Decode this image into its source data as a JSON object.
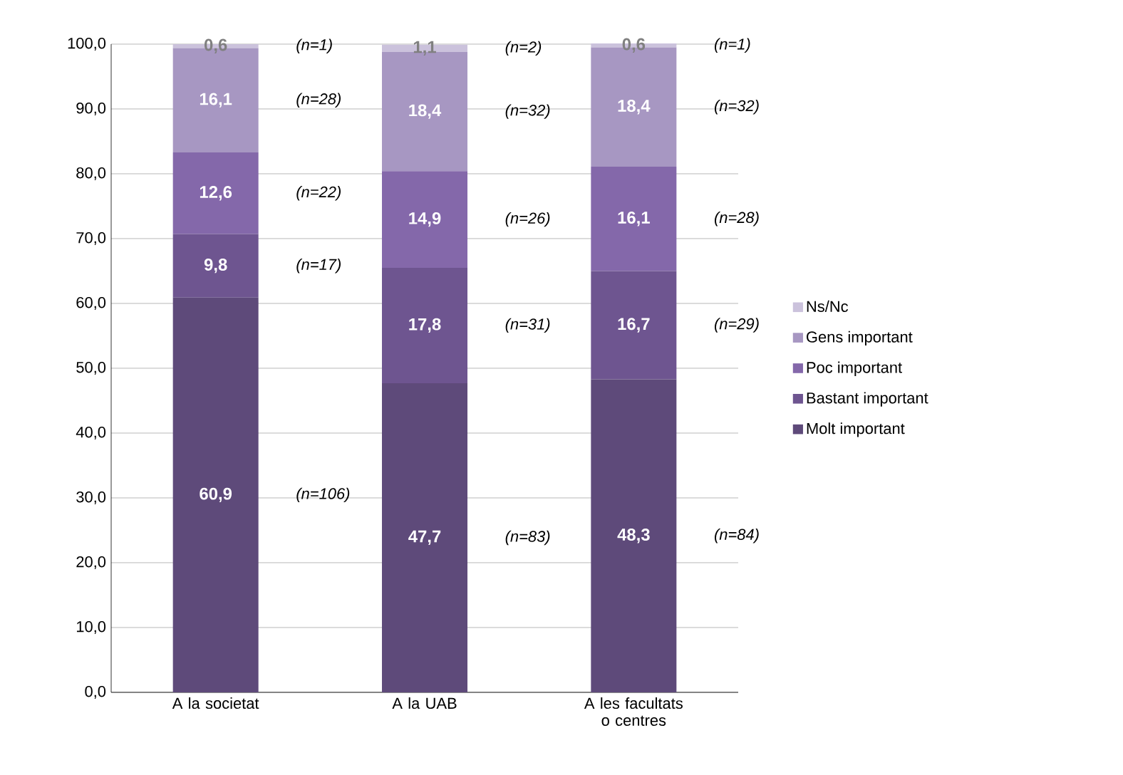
{
  "chart_data": {
    "type": "bar",
    "stacked": true,
    "categories": [
      "A la societat",
      "A la UAB",
      "A les facultats o centres"
    ],
    "series": [
      {
        "name": "Molt important",
        "color": "#5e4a7a",
        "values": [
          60.9,
          47.7,
          48.3
        ],
        "value_labels": [
          "60,9",
          "47,7",
          "48,3"
        ]
      },
      {
        "name": "Bastant important",
        "color": "#6e5590",
        "values": [
          9.8,
          17.8,
          16.7
        ],
        "value_labels": [
          "9,8",
          "17,8",
          "16,7"
        ]
      },
      {
        "name": "Poc important",
        "color": "#8468aa",
        "values": [
          12.6,
          14.9,
          16.1
        ],
        "value_labels": [
          "12,6",
          "14,9",
          "16,1"
        ]
      },
      {
        "name": "Gens important",
        "color": "#a797c2",
        "values": [
          16.1,
          18.4,
          18.4
        ],
        "value_labels": [
          "16,1",
          "18,4",
          "18,4"
        ]
      },
      {
        "name": "Ns/Nc",
        "color": "#cbc2dc",
        "values": [
          0.6,
          1.1,
          0.6
        ],
        "value_labels": [
          "0,6",
          "1,1",
          "0,6"
        ]
      }
    ],
    "ylim": [
      0,
      100
    ],
    "yticks": [
      {
        "value": 0,
        "label": "0,0"
      },
      {
        "value": 10,
        "label": "10,0"
      },
      {
        "value": 20,
        "label": "20,0"
      },
      {
        "value": 30,
        "label": "30,0"
      },
      {
        "value": 40,
        "label": "40,0"
      },
      {
        "value": 50,
        "label": "50,0"
      },
      {
        "value": 60,
        "label": "60,0"
      },
      {
        "value": 70,
        "label": "70,0"
      },
      {
        "value": 80,
        "label": "80,0"
      },
      {
        "value": 90,
        "label": "90,0"
      },
      {
        "value": 100,
        "label": "100,0"
      }
    ],
    "grid": "y",
    "legend": "right",
    "annotations": [
      "(n=106)",
      "(n=17)",
      "(n=22)",
      "(n=28)",
      "(n=1)",
      "(n=83)",
      "(n=31)",
      "(n=26)",
      "(n=32)",
      "(n=2)",
      "(n=84)",
      "(n=29)",
      "(n=28)",
      "(n=32)",
      "(n=1)"
    ]
  }
}
